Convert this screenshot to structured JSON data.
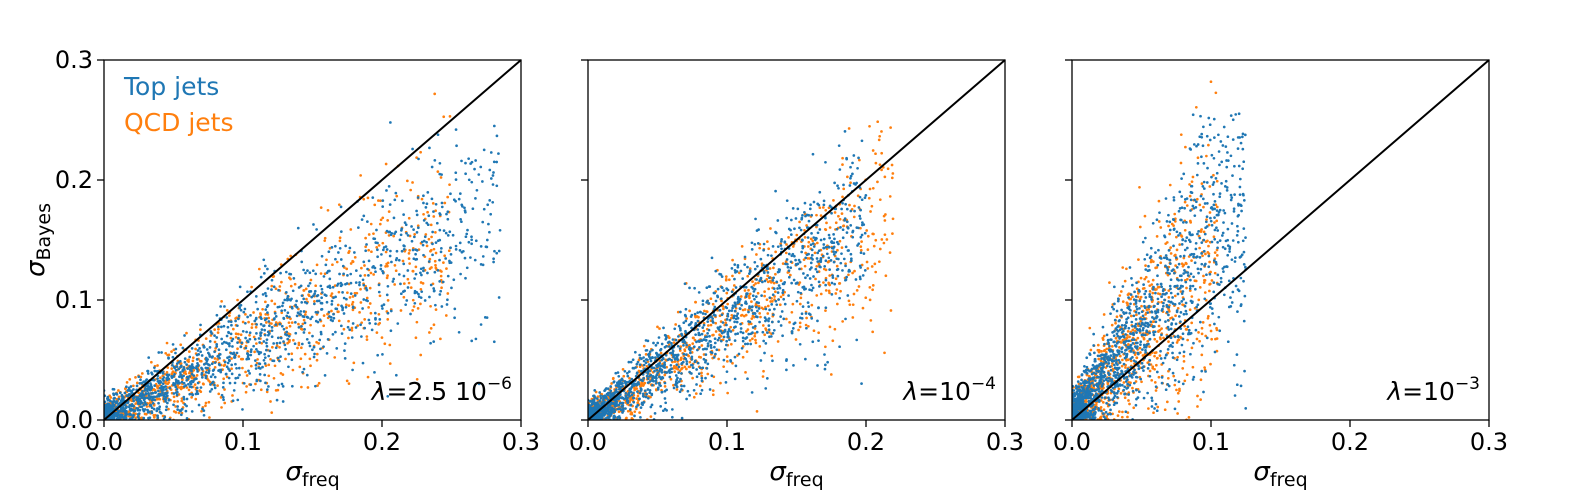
{
  "colors": {
    "top": "#1f77b4",
    "qcd": "#ff7f0e",
    "diagonal": "#000000",
    "axes": "#000000"
  },
  "chart_data": [
    {
      "type": "scatter",
      "lambda_label": {
        "symbol": "λ",
        "mantissa": "=2.5 10",
        "exponent": "−6"
      },
      "xlabel": {
        "symbol": "σ",
        "sub": "freq"
      },
      "ylabel": {
        "symbol": "σ",
        "sub": "Bayes"
      },
      "xlim": [
        0.0,
        0.3
      ],
      "ylim": [
        0.0,
        0.3
      ],
      "xticks": [
        "0.0",
        "0.1",
        "0.2",
        "0.3"
      ],
      "yticks": [
        "0.0",
        "0.1",
        "0.2",
        "0.3"
      ],
      "show_yticklabels": true,
      "reference_line": "y = x",
      "legend": {
        "placement": "top-left",
        "entries": [
          "Top jets",
          "QCD jets"
        ]
      },
      "series": [
        {
          "name": "Top jets",
          "count": 1500,
          "x_range": [
            0.0,
            0.285
          ],
          "y_range": [
            0.0,
            0.255
          ],
          "slope": 0.62,
          "spread": 0.028
        },
        {
          "name": "QCD jets",
          "count": 1000,
          "x_range": [
            0.0,
            0.25
          ],
          "y_range": [
            0.0,
            0.285
          ],
          "slope": 0.6,
          "spread": 0.028
        }
      ]
    },
    {
      "type": "scatter",
      "lambda_label": {
        "symbol": "λ",
        "mantissa": "=10",
        "exponent": "−4"
      },
      "xlabel": {
        "symbol": "σ",
        "sub": "freq"
      },
      "ylabel": null,
      "xlim": [
        0.0,
        0.3
      ],
      "ylim": [
        0.0,
        0.3
      ],
      "xticks": [
        "0.0",
        "0.1",
        "0.2",
        "0.3"
      ],
      "yticks": [
        "0.0",
        "0.1",
        "0.2",
        "0.3"
      ],
      "show_yticklabels": false,
      "reference_line": "y = x",
      "series": [
        {
          "name": "Top jets",
          "count": 1500,
          "x_range": [
            0.0,
            0.2
          ],
          "y_range": [
            0.0,
            0.25
          ],
          "slope": 0.85,
          "spread": 0.025
        },
        {
          "name": "QCD jets",
          "count": 1000,
          "x_range": [
            0.0,
            0.22
          ],
          "y_range": [
            0.0,
            0.285
          ],
          "slope": 0.8,
          "spread": 0.025
        }
      ]
    },
    {
      "type": "scatter",
      "lambda_label": {
        "symbol": "λ",
        "mantissa": "=10",
        "exponent": "−3"
      },
      "xlabel": {
        "symbol": "σ",
        "sub": "freq"
      },
      "ylabel": null,
      "xlim": [
        0.0,
        0.3
      ],
      "ylim": [
        0.0,
        0.3
      ],
      "xticks": [
        "0.0",
        "0.1",
        "0.2",
        "0.3"
      ],
      "yticks": [
        "0.0",
        "0.1",
        "0.2",
        "0.3"
      ],
      "show_yticklabels": false,
      "reference_line": "y = x",
      "series": [
        {
          "name": "Top jets",
          "count": 1500,
          "x_range": [
            0.0,
            0.125
          ],
          "y_range": [
            0.0,
            0.26
          ],
          "slope": 1.55,
          "spread": 0.038
        },
        {
          "name": "QCD jets",
          "count": 1000,
          "x_range": [
            0.0,
            0.105
          ],
          "y_range": [
            0.0,
            0.285
          ],
          "slope": 1.4,
          "spread": 0.038
        }
      ]
    }
  ]
}
